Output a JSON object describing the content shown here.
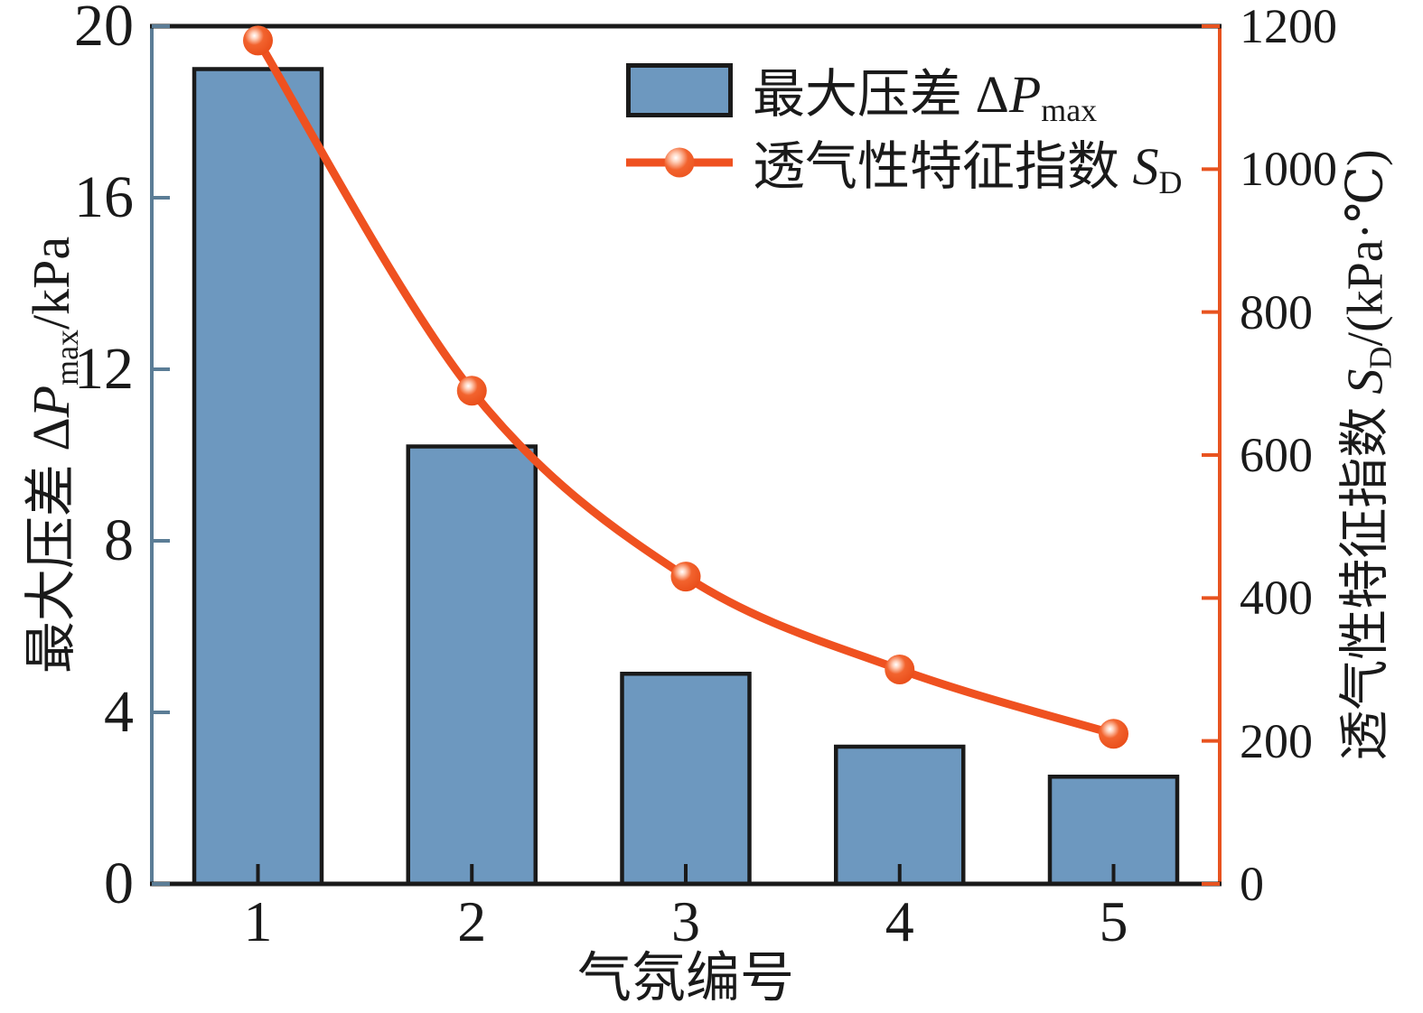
{
  "figure": {
    "description": "Dual-axis chart: blue bars of maximum pressure difference and orange sphere-marker line of permeability characteristic index versus atmosphere number"
  },
  "colors": {
    "bar_fill": "#6d98bf",
    "bar_border": "#1a1a1a",
    "line": "#ef5120",
    "marker_core": "#e94d19",
    "left_axis": "#5b7d96",
    "right_axis": "#e8531f",
    "frame": "#1a1a1a",
    "text": "#1a1a1a"
  },
  "axes": {
    "left_title": {
      "prefix": "最大压差 Δ",
      "italic": "P",
      "sub": "max",
      "suffix": "/kPa"
    },
    "right_title": {
      "prefix": "透气性特征指数 ",
      "italic": "S",
      "sub": "D",
      "suffix": "/(kPa·℃)"
    },
    "x_title": "气氛编号"
  },
  "legend": {
    "items": [
      {
        "prefix": "最大压差 Δ",
        "italic": "P",
        "sub": "max"
      },
      {
        "prefix": "透气性特征指数 ",
        "italic": "S",
        "sub": "D"
      }
    ]
  },
  "chart_data": {
    "type": "bar+line",
    "title": "",
    "categories": [
      "1",
      "2",
      "3",
      "4",
      "5"
    ],
    "x_label": "气氛编号",
    "series": [
      {
        "name": "最大压差 ΔPmax",
        "type": "bar",
        "axis": "left",
        "unit": "kPa",
        "color": "#6d98bf",
        "values": [
          19.0,
          10.2,
          4.9,
          3.2,
          2.5
        ]
      },
      {
        "name": "透气性特征指数 SD",
        "type": "line",
        "axis": "right",
        "unit": "kPa·℃",
        "color": "#ef5120",
        "values": [
          1180,
          690,
          430,
          300,
          210
        ]
      }
    ],
    "left_axis": {
      "label": "最大压差 ΔPmax/kPa",
      "min": 0,
      "max": 20,
      "ticks": [
        0,
        4,
        8,
        12,
        16,
        20
      ]
    },
    "right_axis": {
      "label": "透气性特征指数 SD/(kPa·℃)",
      "min": 0,
      "max": 1200,
      "ticks": [
        0,
        200,
        400,
        600,
        800,
        1000,
        1200
      ]
    },
    "legend_position": "top-center",
    "grid": false
  }
}
